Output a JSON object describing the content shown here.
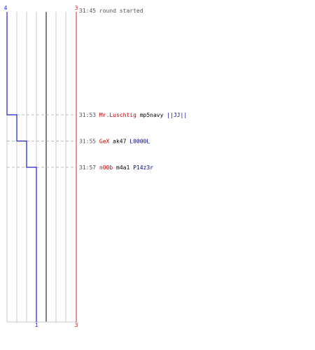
{
  "teams": {
    "blue": {
      "start_count": "4",
      "end_count": "1",
      "color": "#1f1fd0"
    },
    "red": {
      "start_count": "3",
      "end_count": "3",
      "color": "#cc2222"
    }
  },
  "colors": {
    "text": "#555555",
    "grid": "#c8c8c8",
    "center": "#808080",
    "dash": "#bbbbbb",
    "red_name": "#cc0000",
    "blue_name": "#000099",
    "weapon": "#000000"
  },
  "events": [
    {
      "time": "31:45",
      "type": "message",
      "text": "round started"
    },
    {
      "time": "31:53",
      "type": "kill",
      "killer": "Mr.Luschtig",
      "weapon": "mp5navy",
      "victim": "||JJ||",
      "blue_after": 3
    },
    {
      "time": "31:55",
      "type": "kill",
      "killer": "GeX",
      "weapon": "ak47",
      "victim": "L0000L",
      "blue_after": 2
    },
    {
      "time": "31:57",
      "type": "kill",
      "killer": "n00b",
      "weapon": "m4a1",
      "victim": "P14z3r",
      "blue_after": 1
    }
  ]
}
